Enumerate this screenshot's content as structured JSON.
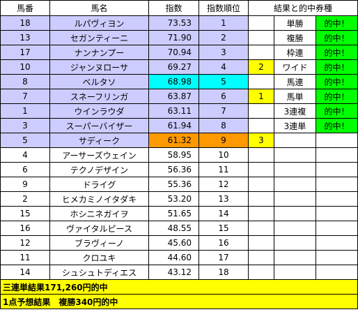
{
  "headers": {
    "number": "馬番",
    "name": "馬名",
    "index": "指数",
    "rank": "指数順位",
    "result": "結果と的中券種"
  },
  "rows": [
    {
      "number": "18",
      "name": "ルパヴィヨン",
      "index": "73.53",
      "rank": "1",
      "result_pos": "",
      "bet": "単勝",
      "hit": "的中！"
    },
    {
      "number": "13",
      "name": "セガンティーニ",
      "index": "71.90",
      "rank": "2",
      "result_pos": "",
      "bet": "複勝",
      "hit": "的中！"
    },
    {
      "number": "17",
      "name": "ナンナンプー",
      "index": "70.94",
      "rank": "3",
      "result_pos": "",
      "bet": "枠連",
      "hit": "的中！"
    },
    {
      "number": "10",
      "name": "ジャンヌローサ",
      "index": "69.27",
      "rank": "4",
      "result_pos": "2",
      "bet": "ワイド",
      "hit": "的中！"
    },
    {
      "number": "8",
      "name": "ベルタソ",
      "index": "68.98",
      "rank": "5",
      "result_pos": "",
      "bet": "馬連",
      "hit": "的中！"
    },
    {
      "number": "7",
      "name": "スネーフリンガ",
      "index": "63.87",
      "rank": "6",
      "result_pos": "1",
      "bet": "馬単",
      "hit": "的中！"
    },
    {
      "number": "1",
      "name": "ウインラウダ",
      "index": "63.11",
      "rank": "7",
      "result_pos": "",
      "bet": "3連複",
      "hit": "的中！"
    },
    {
      "number": "3",
      "name": "スーパーバイザー",
      "index": "61.94",
      "rank": "8",
      "result_pos": "",
      "bet": "3連単",
      "hit": "的中！"
    },
    {
      "number": "5",
      "name": "サディーク",
      "index": "61.32",
      "rank": "9",
      "result_pos": "3",
      "bet": "",
      "hit": ""
    },
    {
      "number": "4",
      "name": "アーサーズウェイン",
      "index": "58.95",
      "rank": "10",
      "result_pos": "",
      "bet": "",
      "hit": ""
    },
    {
      "number": "6",
      "name": "テクノデザイン",
      "index": "56.36",
      "rank": "11",
      "result_pos": "",
      "bet": "",
      "hit": ""
    },
    {
      "number": "9",
      "name": "ドライグ",
      "index": "55.36",
      "rank": "12",
      "result_pos": "",
      "bet": "",
      "hit": ""
    },
    {
      "number": "2",
      "name": "ヒメカミノイタダキ",
      "index": "53.20",
      "rank": "13",
      "result_pos": "",
      "bet": "",
      "hit": ""
    },
    {
      "number": "15",
      "name": "ホシニネガイヲ",
      "index": "51.65",
      "rank": "14",
      "result_pos": "",
      "bet": "",
      "hit": ""
    },
    {
      "number": "16",
      "name": "ヴァイタルピース",
      "index": "48.55",
      "rank": "15",
      "result_pos": "",
      "bet": "",
      "hit": ""
    },
    {
      "number": "12",
      "name": "ブラヴィーノ",
      "index": "45.60",
      "rank": "16",
      "result_pos": "",
      "bet": "",
      "hit": ""
    },
    {
      "number": "11",
      "name": "クロユキ",
      "index": "44.60",
      "rank": "17",
      "result_pos": "",
      "bet": "",
      "hit": ""
    },
    {
      "number": "14",
      "name": "シュシュトディエス",
      "index": "43.12",
      "rank": "18",
      "result_pos": "",
      "bet": "",
      "hit": ""
    }
  ],
  "summary": [
    "三連単結果171,260円的中",
    "1点予想結果　複勝340円的中"
  ],
  "colors": {
    "top_rank": "#ccccff",
    "result_1st_2nd_index": "#00ffff",
    "result_3rd_index": "#ff9900",
    "result_position": "#ffff00",
    "hit": "#00ff00",
    "summary": "#ffff00"
  }
}
